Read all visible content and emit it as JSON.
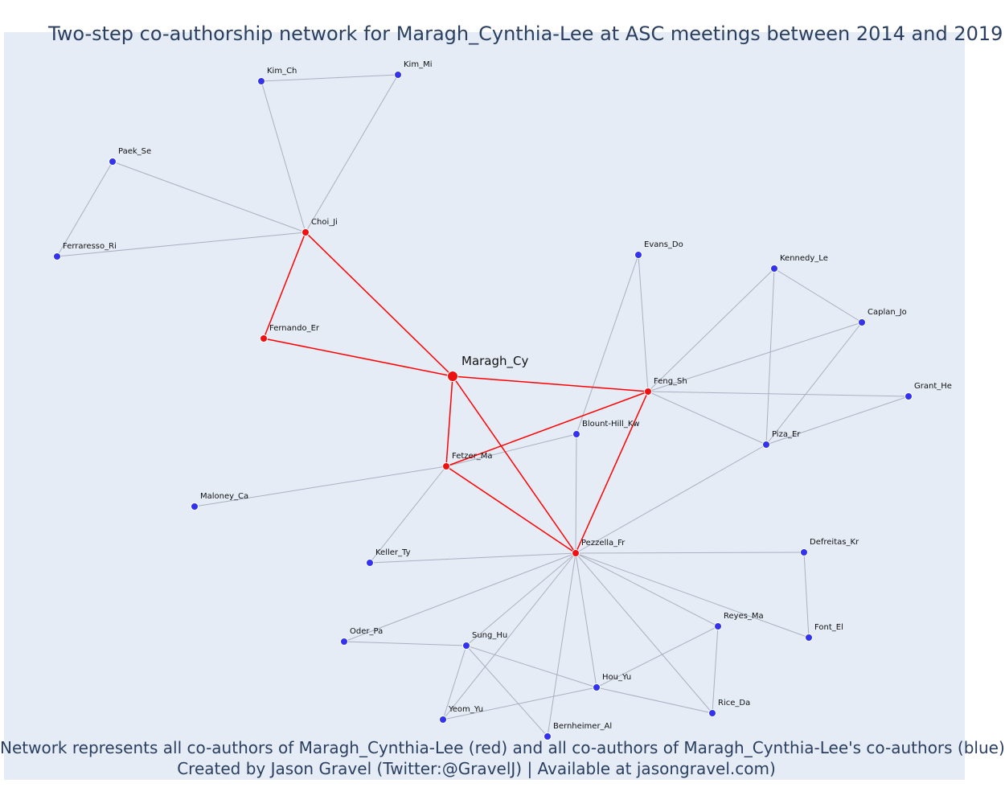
{
  "title": "Two-step co-authorship network for Maragh_Cynthia-Lee at ASC meetings between 2014 and 2019",
  "footer_line1": "Network represents all co-authors of Maragh_Cynthia-Lee (red) and all co-authors of Maragh_Cynthia-Lee's co-authors (blue)",
  "footer_line2": "Created by Jason Gravel (Twitter:@GravelJ) | Available at jasongravel.com)",
  "colors": {
    "background": "#e5ecf6",
    "focal_edge": "#ff0000",
    "other_edge": "#aab0c0",
    "red_node": "#ee1111",
    "blue_node": "#3333ee",
    "text": "#2a3f5f"
  },
  "nodes": [
    {
      "id": "Maragh_Cy",
      "group": "focal"
    },
    {
      "id": "Choi_Ji",
      "group": "red"
    },
    {
      "id": "Fernando_Er",
      "group": "red"
    },
    {
      "id": "Feng_Sh",
      "group": "red"
    },
    {
      "id": "Fetzer_Ma",
      "group": "red"
    },
    {
      "id": "Pezzella_Fr",
      "group": "red"
    },
    {
      "id": "Kim_Ch",
      "group": "blue"
    },
    {
      "id": "Kim_Mi",
      "group": "blue"
    },
    {
      "id": "Paek_Se",
      "group": "blue"
    },
    {
      "id": "Ferraresso_Ri",
      "group": "blue"
    },
    {
      "id": "Evans_Do",
      "group": "blue"
    },
    {
      "id": "Kennedy_Le",
      "group": "blue"
    },
    {
      "id": "Caplan_Jo",
      "group": "blue"
    },
    {
      "id": "Grant_He",
      "group": "blue"
    },
    {
      "id": "Blount-Hill_Kw",
      "group": "blue"
    },
    {
      "id": "Piza_Er",
      "group": "blue"
    },
    {
      "id": "Maloney_Ca",
      "group": "blue"
    },
    {
      "id": "Keller_Ty",
      "group": "blue"
    },
    {
      "id": "Defreitas_Kr",
      "group": "blue"
    },
    {
      "id": "Reyes_Ma",
      "group": "blue"
    },
    {
      "id": "Font_El",
      "group": "blue"
    },
    {
      "id": "Oder_Pa",
      "group": "blue"
    },
    {
      "id": "Sung_Hu",
      "group": "blue"
    },
    {
      "id": "Hou_Yu",
      "group": "blue"
    },
    {
      "id": "Rice_Da",
      "group": "blue"
    },
    {
      "id": "Yeom_Yu",
      "group": "blue"
    },
    {
      "id": "Bernheimer_Al",
      "group": "blue"
    }
  ],
  "edges_focal": [
    [
      "Maragh_Cy",
      "Choi_Ji"
    ],
    [
      "Maragh_Cy",
      "Fernando_Er"
    ],
    [
      "Maragh_Cy",
      "Feng_Sh"
    ],
    [
      "Maragh_Cy",
      "Fetzer_Ma"
    ],
    [
      "Maragh_Cy",
      "Pezzella_Fr"
    ],
    [
      "Choi_Ji",
      "Fernando_Er"
    ],
    [
      "Fetzer_Ma",
      "Feng_Sh"
    ],
    [
      "Fetzer_Ma",
      "Pezzella_Fr"
    ],
    [
      "Feng_Sh",
      "Pezzella_Fr"
    ]
  ],
  "edges_other": [
    [
      "Kim_Ch",
      "Kim_Mi"
    ],
    [
      "Kim_Ch",
      "Choi_Ji"
    ],
    [
      "Kim_Mi",
      "Choi_Ji"
    ],
    [
      "Paek_Se",
      "Choi_Ji"
    ],
    [
      "Paek_Se",
      "Ferraresso_Ri"
    ],
    [
      "Ferraresso_Ri",
      "Choi_Ji"
    ],
    [
      "Evans_Do",
      "Feng_Sh"
    ],
    [
      "Evans_Do",
      "Blount-Hill_Kw"
    ],
    [
      "Kennedy_Le",
      "Feng_Sh"
    ],
    [
      "Kennedy_Le",
      "Caplan_Jo"
    ],
    [
      "Kennedy_Le",
      "Piza_Er"
    ],
    [
      "Caplan_Jo",
      "Feng_Sh"
    ],
    [
      "Caplan_Jo",
      "Piza_Er"
    ],
    [
      "Grant_He",
      "Feng_Sh"
    ],
    [
      "Grant_He",
      "Piza_Er"
    ],
    [
      "Feng_Sh",
      "Piza_Er"
    ],
    [
      "Piza_Er",
      "Pezzella_Fr"
    ],
    [
      "Blount-Hill_Kw",
      "Fetzer_Ma"
    ],
    [
      "Blount-Hill_Kw",
      "Pezzella_Fr"
    ],
    [
      "Maloney_Ca",
      "Fetzer_Ma"
    ],
    [
      "Keller_Ty",
      "Fetzer_Ma"
    ],
    [
      "Keller_Ty",
      "Pezzella_Fr"
    ],
    [
      "Defreitas_Kr",
      "Pezzella_Fr"
    ],
    [
      "Defreitas_Kr",
      "Font_El"
    ],
    [
      "Font_El",
      "Pezzella_Fr"
    ],
    [
      "Reyes_Ma",
      "Pezzella_Fr"
    ],
    [
      "Reyes_Ma",
      "Hou_Yu"
    ],
    [
      "Reyes_Ma",
      "Rice_Da"
    ],
    [
      "Rice_Da",
      "Pezzella_Fr"
    ],
    [
      "Rice_Da",
      "Hou_Yu"
    ],
    [
      "Oder_Pa",
      "Pezzella_Fr"
    ],
    [
      "Oder_Pa",
      "Sung_Hu"
    ],
    [
      "Sung_Hu",
      "Pezzella_Fr"
    ],
    [
      "Sung_Hu",
      "Hou_Yu"
    ],
    [
      "Sung_Hu",
      "Yeom_Yu"
    ],
    [
      "Sung_Hu",
      "Bernheimer_Al"
    ],
    [
      "Hou_Yu",
      "Pezzella_Fr"
    ],
    [
      "Hou_Yu",
      "Yeom_Yu"
    ],
    [
      "Yeom_Yu",
      "Pezzella_Fr"
    ],
    [
      "Bernheimer_Al",
      "Pezzella_Fr"
    ]
  ]
}
